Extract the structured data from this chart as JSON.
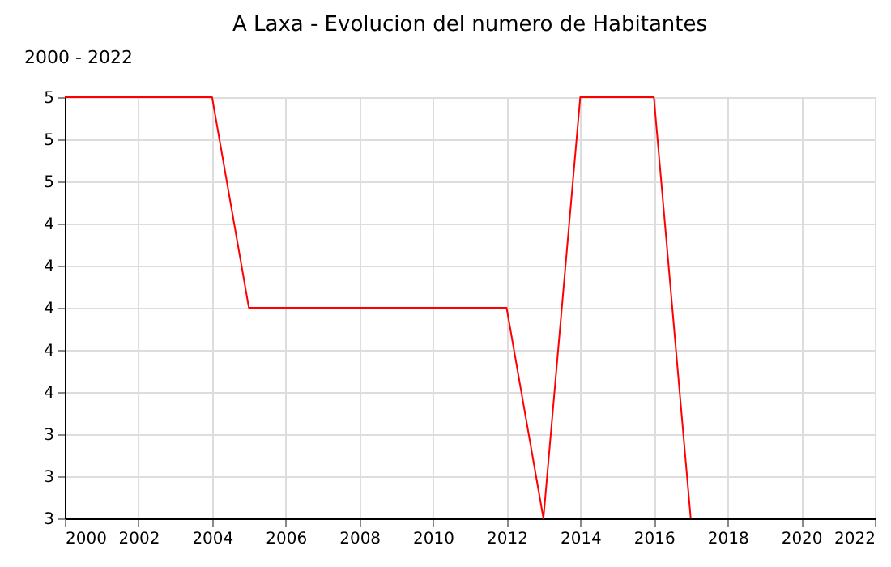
{
  "chart_data": {
    "type": "line",
    "title": "A Laxa - Evolucion del numero de Habitantes",
    "annotations": [
      "2000 - 2022"
    ],
    "x": [
      2000,
      2001,
      2002,
      2003,
      2004,
      2005,
      2006,
      2007,
      2008,
      2009,
      2010,
      2011,
      2012,
      2013,
      2014,
      2015,
      2016,
      2017
    ],
    "series": [
      {
        "color": "#ff0000",
        "values": [
          5,
          5,
          5,
          5,
          5,
          4,
          4,
          4,
          4,
          4,
          4,
          4,
          4,
          3,
          5,
          5,
          5,
          3
        ]
      }
    ],
    "xlim": [
      2000,
      2022
    ],
    "xticks": [
      2000,
      2002,
      2004,
      2006,
      2008,
      2010,
      2012,
      2014,
      2016,
      2018,
      2020,
      2022
    ],
    "ylim": [
      3,
      5
    ],
    "yticks": [
      3,
      {
        "value": 3.2,
        "label": "3"
      },
      {
        "value": 3.4,
        "label": "3"
      },
      {
        "value": 3.6,
        "label": "4"
      },
      {
        "value": 3.8,
        "label": "4"
      },
      4,
      {
        "value": 4.2,
        "label": "4"
      },
      {
        "value": 4.4,
        "label": "4"
      },
      {
        "value": 4.6,
        "label": "5"
      },
      {
        "value": 4.8,
        "label": "5"
      },
      5
    ],
    "grid": true,
    "marker": "none",
    "line_style": "solid"
  }
}
